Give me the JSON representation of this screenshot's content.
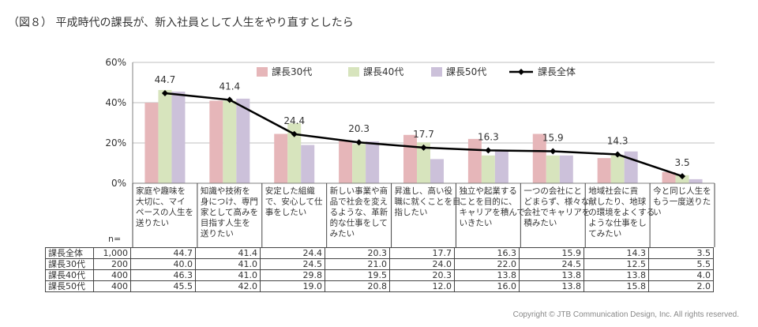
{
  "title": "（図８） 平成時代の課長が、新入社員として人生をやり直すとしたら",
  "copyright": "Copyright © JTB Communication Design, Inc. All rights reserved.",
  "n_label": "n=",
  "colors": {
    "s30": "#e6b6b9",
    "s40": "#d7e4bd",
    "s50": "#ccc1da",
    "total": "#000000",
    "grid": "#bfbfbf"
  },
  "chart_data": {
    "type": "bar",
    "ylim": [
      0,
      60
    ],
    "yticks": [
      "0%",
      "20%",
      "40%",
      "60%"
    ],
    "legend_position": "top",
    "categories": [
      "家庭や趣味を大切に、マイペースの人生を送りたい",
      "知識や技術を身につけ、専門家として高みを目指す人生を送りたい",
      "安定した組織で、安心して仕事をしたい",
      "新しい事業や商品で社会を変えるような、革新的な仕事をしてみたい",
      "昇進し、高い役職に就くことを目指したい",
      "独立や起業することを目的に、キャリアを積んでいきたい",
      "一つの会社にとどまらず、様々な会社でキャリアを積みたい",
      "地域社会に貢献したり、地球の環境をよくするような仕事をしてみたい",
      "今と同じ人生をもう一度送りたい"
    ],
    "category_lines": [
      [
        "家庭や趣味を",
        "大切に、マイ",
        "ペースの人生を",
        "送りたい"
      ],
      [
        "知識や技術を",
        "身につけ、専門",
        "家として高みを",
        "目指す人生を",
        "送りたい"
      ],
      [
        "安定した組織",
        "で、安心して仕",
        "事をしたい"
      ],
      [
        "新しい事業や商",
        "品で社会を変え",
        "るような、革新",
        "的な仕事をして",
        "みたい"
      ],
      [
        "昇進し、高い役",
        "職に就くことを目",
        "指したい"
      ],
      [
        "独立や起業する",
        "ことを目的に、",
        "キャリアを積んで",
        "いきたい"
      ],
      [
        "一つの会社にと",
        "どまらず、様々な",
        "会社でキャリアを",
        "積みたい"
      ],
      [
        "地域社会に貢",
        "献したり、地球",
        "の環境をよくする",
        "ような仕事をし",
        "てみたい"
      ],
      [
        "今と同じ人生を",
        "もう一度送りた",
        "い"
      ]
    ],
    "series": [
      {
        "name": "課長30代",
        "n": "200",
        "values": [
          40.0,
          41.0,
          24.5,
          21.0,
          24.0,
          22.0,
          24.5,
          12.5,
          5.5
        ]
      },
      {
        "name": "課長40代",
        "n": "400",
        "values": [
          46.3,
          41.0,
          29.8,
          19.5,
          20.3,
          13.8,
          13.8,
          13.8,
          4.0
        ]
      },
      {
        "name": "課長50代",
        "n": "400",
        "values": [
          45.5,
          42.0,
          19.0,
          20.8,
          12.0,
          16.0,
          13.8,
          15.8,
          2.0
        ]
      },
      {
        "name": "課長全体",
        "n": "1,000",
        "type": "line",
        "values": [
          44.7,
          41.4,
          24.4,
          20.3,
          17.7,
          16.3,
          15.9,
          14.3,
          3.5
        ]
      }
    ]
  },
  "table": {
    "rows": [
      {
        "label": "課長全体",
        "n": "1,000",
        "values": [
          "44.7",
          "41.4",
          "24.4",
          "20.3",
          "17.7",
          "16.3",
          "15.9",
          "14.3",
          "3.5"
        ]
      },
      {
        "label": "課長30代",
        "n": "200",
        "values": [
          "40.0",
          "41.0",
          "24.5",
          "21.0",
          "24.0",
          "22.0",
          "24.5",
          "12.5",
          "5.5"
        ]
      },
      {
        "label": "課長40代",
        "n": "400",
        "values": [
          "46.3",
          "41.0",
          "29.8",
          "19.5",
          "20.3",
          "13.8",
          "13.8",
          "13.8",
          "4.0"
        ]
      },
      {
        "label": "課長50代",
        "n": "400",
        "values": [
          "45.5",
          "42.0",
          "19.0",
          "20.8",
          "12.0",
          "16.0",
          "13.8",
          "15.8",
          "2.0"
        ]
      }
    ]
  }
}
